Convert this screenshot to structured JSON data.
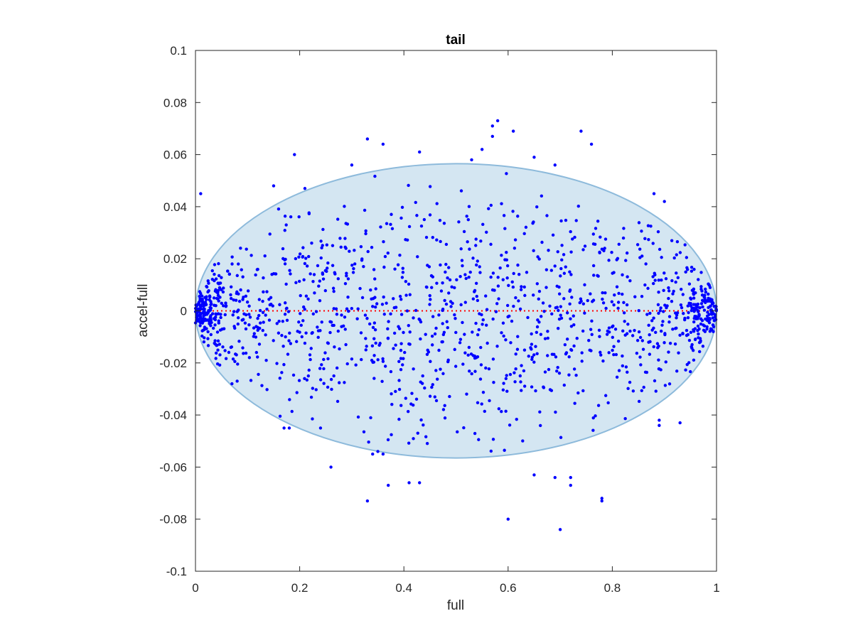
{
  "chart_data": {
    "type": "scatter",
    "title": "tail",
    "xlabel": "full",
    "ylabel": "accel-full",
    "xlim": [
      0,
      1
    ],
    "ylim": [
      -0.1,
      0.1
    ],
    "xticks": [
      0,
      0.2,
      0.4,
      0.6,
      0.8,
      1
    ],
    "xtick_labels": [
      "0",
      "0.2",
      "0.4",
      "0.6",
      "0.8",
      "1"
    ],
    "yticks": [
      -0.1,
      -0.08,
      -0.06,
      -0.04,
      -0.02,
      0,
      0.02,
      0.04,
      0.06,
      0.08,
      0.1
    ],
    "ytick_labels": [
      "-0.1",
      "-0.08",
      "-0.06",
      "-0.04",
      "-0.02",
      "0",
      "0.02",
      "0.04",
      "0.06",
      "0.08",
      "0.1"
    ],
    "grid": false,
    "ellipse": {
      "center": [
        0.5,
        0
      ],
      "radius_x": 0.5,
      "radius_y": 0.0565,
      "fill": "#d4e6f2",
      "stroke": "#8dbadb"
    },
    "reference_line": {
      "y": 0,
      "style": "dotted",
      "color": "#ff0000"
    },
    "point_color": "#0000ff",
    "outlier_points": [
      [
        0.58,
        0.073
      ],
      [
        0.57,
        0.071
      ],
      [
        0.61,
        0.069
      ],
      [
        0.74,
        0.069
      ],
      [
        0.57,
        0.067
      ],
      [
        0.33,
        0.066
      ],
      [
        0.76,
        0.064
      ],
      [
        0.36,
        0.064
      ],
      [
        0.55,
        0.062
      ],
      [
        0.43,
        0.061
      ],
      [
        0.19,
        0.06
      ],
      [
        0.53,
        0.058
      ],
      [
        0.65,
        0.059
      ],
      [
        0.69,
        0.056
      ],
      [
        0.3,
        0.056
      ],
      [
        0.01,
        0.045
      ],
      [
        0.88,
        0.045
      ],
      [
        0.9,
        0.042
      ],
      [
        0.15,
        0.048
      ],
      [
        0.21,
        0.047
      ],
      [
        0.26,
        -0.06
      ],
      [
        0.37,
        -0.067
      ],
      [
        0.41,
        -0.066
      ],
      [
        0.43,
        -0.066
      ],
      [
        0.33,
        -0.073
      ],
      [
        0.6,
        -0.08
      ],
      [
        0.7,
        -0.084
      ],
      [
        0.78,
        -0.072
      ],
      [
        0.78,
        -0.073
      ],
      [
        0.72,
        -0.067
      ],
      [
        0.69,
        -0.064
      ],
      [
        0.72,
        -0.064
      ],
      [
        0.65,
        -0.063
      ],
      [
        0.18,
        -0.045
      ],
      [
        0.17,
        -0.045
      ],
      [
        0.89,
        -0.042
      ],
      [
        0.93,
        -0.043
      ],
      [
        0.89,
        -0.044
      ],
      [
        0.34,
        -0.055
      ],
      [
        0.35,
        -0.054
      ],
      [
        0.36,
        -0.055
      ],
      [
        0.24,
        -0.045
      ],
      [
        0.07,
        -0.028
      ],
      [
        0.08,
        -0.027
      ]
    ],
    "cluster_points": {
      "count": 1350,
      "x_range": [
        0,
        1
      ],
      "y_range": [
        -0.056,
        0.056
      ],
      "bounded_by": "ellipse",
      "dense_near_x": [
        0,
        1
      ]
    }
  }
}
